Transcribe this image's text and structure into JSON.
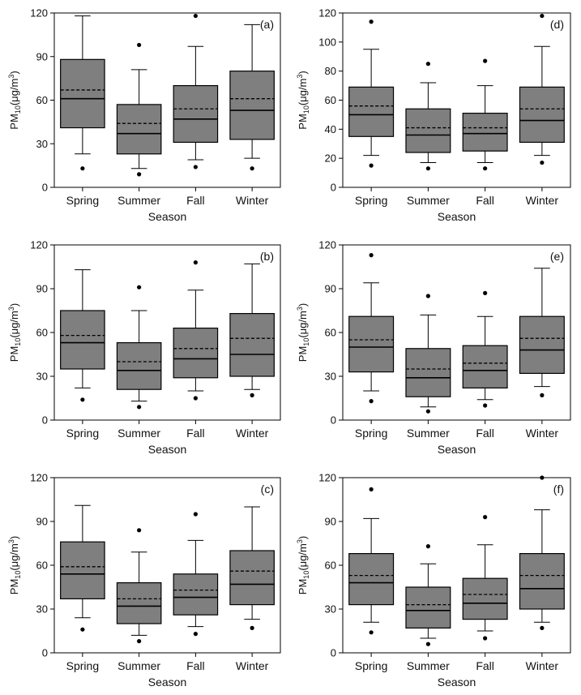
{
  "chart_data": [
    {
      "id": "a",
      "panel_label": "(a)",
      "type": "boxplot",
      "categories": [
        "Spring",
        "Summer",
        "Fall",
        "Winter"
      ],
      "xlabel": "Season",
      "ylabel_main": "PM",
      "ylabel_sub": "10",
      "ylabel_unit": "(μg/m",
      "ylabel_sup": "3",
      "ylabel_close": ")",
      "ylim": [
        0,
        120
      ],
      "yticks": [
        0,
        30,
        60,
        90,
        120
      ],
      "ytick_labels": [
        "0",
        "30",
        "60",
        "90",
        "120"
      ],
      "boxes": [
        {
          "category": "Spring",
          "q1": 41,
          "median": 61,
          "q3": 88,
          "mean": 67,
          "whisker_low": 23,
          "whisker_high": 118,
          "outliers": [
            13
          ]
        },
        {
          "category": "Summer",
          "q1": 23,
          "median": 37,
          "q3": 57,
          "mean": 44,
          "whisker_low": 13,
          "whisker_high": 81,
          "outliers": [
            98,
            9
          ]
        },
        {
          "category": "Fall",
          "q1": 31,
          "median": 47,
          "q3": 70,
          "mean": 54,
          "whisker_low": 19,
          "whisker_high": 97,
          "outliers": [
            118,
            14
          ]
        },
        {
          "category": "Winter",
          "q1": 33,
          "median": 53,
          "q3": 80,
          "mean": 61,
          "whisker_low": 20,
          "whisker_high": 112,
          "outliers": [
            13
          ]
        }
      ]
    },
    {
      "id": "d",
      "panel_label": "(d)",
      "type": "boxplot",
      "categories": [
        "Spring",
        "Summer",
        "Fall",
        "Winter"
      ],
      "xlabel": "Season",
      "ylabel_main": "PM",
      "ylabel_sub": "10",
      "ylabel_unit": "(μg/m",
      "ylabel_sup": "3",
      "ylabel_close": ")",
      "ylim": [
        0,
        120
      ],
      "yticks": [
        0,
        20,
        40,
        60,
        80,
        100,
        120
      ],
      "ytick_labels": [
        "0",
        "20",
        "40",
        "60",
        "80",
        "100",
        "120"
      ],
      "boxes": [
        {
          "category": "Spring",
          "q1": 35,
          "median": 50,
          "q3": 69,
          "mean": 56,
          "whisker_low": 22,
          "whisker_high": 95,
          "outliers": [
            114,
            15
          ]
        },
        {
          "category": "Summer",
          "q1": 24,
          "median": 36,
          "q3": 54,
          "mean": 41,
          "whisker_low": 17,
          "whisker_high": 72,
          "outliers": [
            85,
            13
          ]
        },
        {
          "category": "Fall",
          "q1": 25,
          "median": 37,
          "q3": 51,
          "mean": 41,
          "whisker_low": 17,
          "whisker_high": 70,
          "outliers": [
            87,
            13
          ]
        },
        {
          "category": "Winter",
          "q1": 31,
          "median": 46,
          "q3": 69,
          "mean": 54,
          "whisker_low": 22,
          "whisker_high": 97,
          "outliers": [
            118,
            17
          ]
        }
      ]
    },
    {
      "id": "b",
      "panel_label": "(b)",
      "type": "boxplot",
      "categories": [
        "Spring",
        "Summer",
        "Fall",
        "Winter"
      ],
      "xlabel": "Season",
      "ylabel_main": "PM",
      "ylabel_sub": "10",
      "ylabel_unit": "(μg/m",
      "ylabel_sup": "3",
      "ylabel_close": ")",
      "ylim": [
        0,
        120
      ],
      "yticks": [
        0,
        30,
        60,
        90,
        120
      ],
      "ytick_labels": [
        "0",
        "30",
        "60",
        "90",
        "120"
      ],
      "boxes": [
        {
          "category": "Spring",
          "q1": 35,
          "median": 53,
          "q3": 75,
          "mean": 58,
          "whisker_low": 22,
          "whisker_high": 103,
          "outliers": [
            14
          ]
        },
        {
          "category": "Summer",
          "q1": 21,
          "median": 34,
          "q3": 53,
          "mean": 40,
          "whisker_low": 13,
          "whisker_high": 75,
          "outliers": [
            91,
            9
          ]
        },
        {
          "category": "Fall",
          "q1": 29,
          "median": 42,
          "q3": 63,
          "mean": 49,
          "whisker_low": 20,
          "whisker_high": 89,
          "outliers": [
            108,
            15
          ]
        },
        {
          "category": "Winter",
          "q1": 30,
          "median": 45,
          "q3": 73,
          "mean": 56,
          "whisker_low": 21,
          "whisker_high": 107,
          "outliers": [
            17
          ]
        }
      ]
    },
    {
      "id": "e",
      "panel_label": "(e)",
      "type": "boxplot",
      "categories": [
        "Spring",
        "Summer",
        "Fall",
        "Winter"
      ],
      "xlabel": "Season",
      "ylabel_main": "PM",
      "ylabel_sub": "10",
      "ylabel_unit": "(μg/m",
      "ylabel_sup": "3",
      "ylabel_close": ")",
      "ylim": [
        0,
        120
      ],
      "yticks": [
        0,
        30,
        60,
        90,
        120
      ],
      "ytick_labels": [
        "0",
        "30",
        "60",
        "90",
        "120"
      ],
      "boxes": [
        {
          "category": "Spring",
          "q1": 33,
          "median": 50,
          "q3": 71,
          "mean": 55,
          "whisker_low": 20,
          "whisker_high": 94,
          "outliers": [
            113,
            13
          ]
        },
        {
          "category": "Summer",
          "q1": 16,
          "median": 29,
          "q3": 49,
          "mean": 35,
          "whisker_low": 9,
          "whisker_high": 72,
          "outliers": [
            85,
            6
          ]
        },
        {
          "category": "Fall",
          "q1": 22,
          "median": 34,
          "q3": 51,
          "mean": 39,
          "whisker_low": 14,
          "whisker_high": 71,
          "outliers": [
            87,
            10
          ]
        },
        {
          "category": "Winter",
          "q1": 32,
          "median": 48,
          "q3": 71,
          "mean": 56,
          "whisker_low": 23,
          "whisker_high": 104,
          "outliers": [
            17
          ]
        }
      ]
    },
    {
      "id": "c",
      "panel_label": "(c)",
      "type": "boxplot",
      "categories": [
        "Spring",
        "Summer",
        "Fall",
        "Winter"
      ],
      "xlabel": "Season",
      "ylabel_main": "PM",
      "ylabel_sub": "10",
      "ylabel_unit": "(μg/m",
      "ylabel_sup": "3",
      "ylabel_close": ")",
      "ylim": [
        0,
        120
      ],
      "yticks": [
        0,
        30,
        60,
        90,
        120
      ],
      "ytick_labels": [
        "0",
        "30",
        "60",
        "90",
        "120"
      ],
      "boxes": [
        {
          "category": "Spring",
          "q1": 37,
          "median": 54,
          "q3": 76,
          "mean": 59,
          "whisker_low": 24,
          "whisker_high": 101,
          "outliers": [
            16
          ]
        },
        {
          "category": "Summer",
          "q1": 20,
          "median": 32,
          "q3": 48,
          "mean": 37,
          "whisker_low": 12,
          "whisker_high": 69,
          "outliers": [
            84,
            8
          ]
        },
        {
          "category": "Fall",
          "q1": 26,
          "median": 38,
          "q3": 54,
          "mean": 43,
          "whisker_low": 18,
          "whisker_high": 77,
          "outliers": [
            95,
            13
          ]
        },
        {
          "category": "Winter",
          "q1": 33,
          "median": 47,
          "q3": 70,
          "mean": 56,
          "whisker_low": 23,
          "whisker_high": 100,
          "outliers": [
            17
          ]
        }
      ]
    },
    {
      "id": "f",
      "panel_label": "(f)",
      "type": "boxplot",
      "categories": [
        "Spring",
        "Summer",
        "Fall",
        "Winter"
      ],
      "xlabel": "Season",
      "ylabel_main": "PM",
      "ylabel_sub": "10",
      "ylabel_unit": "(μg/m",
      "ylabel_sup": "3",
      "ylabel_close": ")",
      "ylim": [
        0,
        120
      ],
      "yticks": [
        0,
        30,
        60,
        90,
        120
      ],
      "ytick_labels": [
        "0",
        "30",
        "60",
        "90",
        "120"
      ],
      "boxes": [
        {
          "category": "Spring",
          "q1": 33,
          "median": 48,
          "q3": 68,
          "mean": 53,
          "whisker_low": 21,
          "whisker_high": 92,
          "outliers": [
            112,
            14
          ]
        },
        {
          "category": "Summer",
          "q1": 17,
          "median": 29,
          "q3": 45,
          "mean": 33,
          "whisker_low": 10,
          "whisker_high": 61,
          "outliers": [
            73,
            6
          ]
        },
        {
          "category": "Fall",
          "q1": 23,
          "median": 34,
          "q3": 51,
          "mean": 40,
          "whisker_low": 15,
          "whisker_high": 74,
          "outliers": [
            93,
            10
          ]
        },
        {
          "category": "Winter",
          "q1": 30,
          "median": 44,
          "q3": 68,
          "mean": 53,
          "whisker_low": 21,
          "whisker_high": 98,
          "outliers": [
            120,
            17
          ]
        }
      ]
    }
  ],
  "colors": {
    "box_fill": "#7f7f7f",
    "line": "#000000",
    "text": "#111111"
  }
}
